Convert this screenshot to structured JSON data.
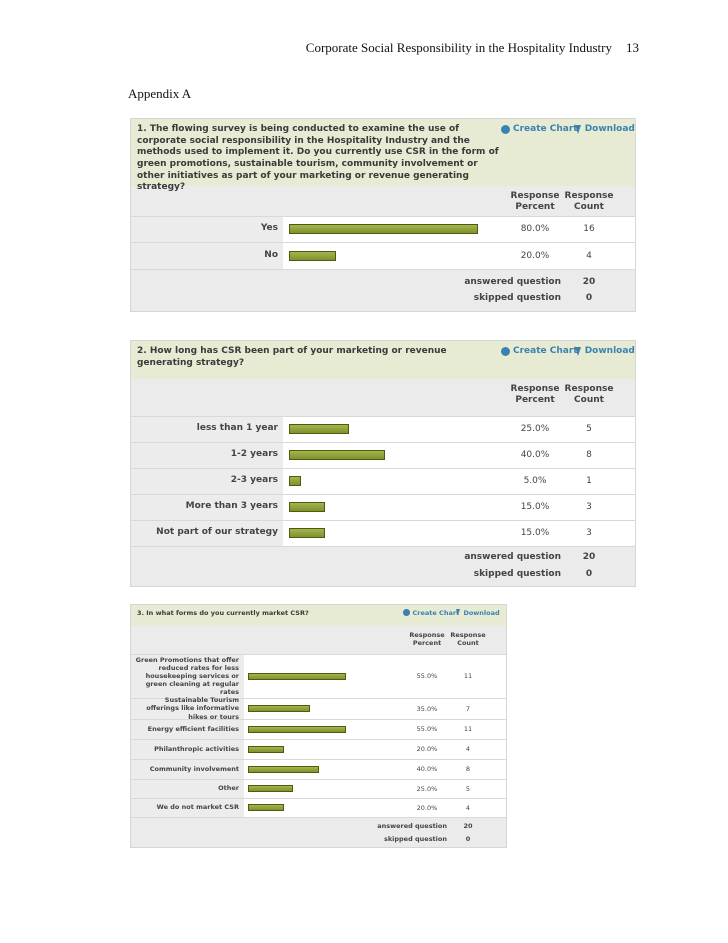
{
  "header": {
    "title": "Corporate Social Responsibility in the Hospitality Industry",
    "page": "13"
  },
  "appendix": "Appendix A",
  "surveys": [
    {
      "question": "1. The flowing survey is being conducted to examine the use of corporate social responsibility in the Hospitality Industry and the methods used to implement it. Do you currently use CSR in the form of green promotions, sustainable tourism, community involvement or other initiatives as part of your marketing or revenue generating strategy?",
      "create_chart": "Create Chart",
      "download": "Download",
      "col_percent": "Response Percent",
      "col_count": "Response Count",
      "rows": [
        {
          "label": "Yes",
          "percent": 80,
          "percent_label": "80.0%",
          "count": 16
        },
        {
          "label": "No",
          "percent": 20,
          "percent_label": "20.0%",
          "count": 4
        }
      ],
      "answered_label": "answered question",
      "answered": 20,
      "skipped_label": "skipped question",
      "skipped": 0
    },
    {
      "question": "2. How long has CSR been part of your marketing or revenue generating strategy?",
      "create_chart": "Create Chart",
      "download": "Download",
      "col_percent": "Response Percent",
      "col_count": "Response Count",
      "rows": [
        {
          "label": "less than 1 year",
          "percent": 25,
          "percent_label": "25.0%",
          "count": 5
        },
        {
          "label": "1-2 years",
          "percent": 40,
          "percent_label": "40.0%",
          "count": 8
        },
        {
          "label": "2-3 years",
          "percent": 5,
          "percent_label": "5.0%",
          "count": 1
        },
        {
          "label": "More than 3 years",
          "percent": 15,
          "percent_label": "15.0%",
          "count": 3
        },
        {
          "label": "Not part of our strategy",
          "percent": 15,
          "percent_label": "15.0%",
          "count": 3
        }
      ],
      "answered_label": "answered question",
      "answered": 20,
      "skipped_label": "skipped question",
      "skipped": 0
    },
    {
      "question": "3. In what forms do you currently market CSR?",
      "create_chart": "Create Chart",
      "download": "Download",
      "col_percent": "Response Percent",
      "col_count": "Response Count",
      "rows": [
        {
          "label": "Green Promotions that offer reduced rates for less housekeeping services or green cleaning at regular rates",
          "percent": 55,
          "percent_label": "55.0%",
          "count": 11
        },
        {
          "label": "Sustainable Tourism offerings like informative hikes or tours",
          "percent": 35,
          "percent_label": "35.0%",
          "count": 7
        },
        {
          "label": "Energy efficient facilities",
          "percent": 55,
          "percent_label": "55.0%",
          "count": 11
        },
        {
          "label": "Philanthropic activities",
          "percent": 20,
          "percent_label": "20.0%",
          "count": 4
        },
        {
          "label": "Community involvement",
          "percent": 40,
          "percent_label": "40.0%",
          "count": 8
        },
        {
          "label": "Other",
          "percent": 25,
          "percent_label": "25.0%",
          "count": 5
        },
        {
          "label": "We do not market CSR",
          "percent": 20,
          "percent_label": "20.0%",
          "count": 4
        }
      ],
      "answered_label": "answered question",
      "answered": 20,
      "skipped_label": "skipped question",
      "skipped": 0
    }
  ]
}
